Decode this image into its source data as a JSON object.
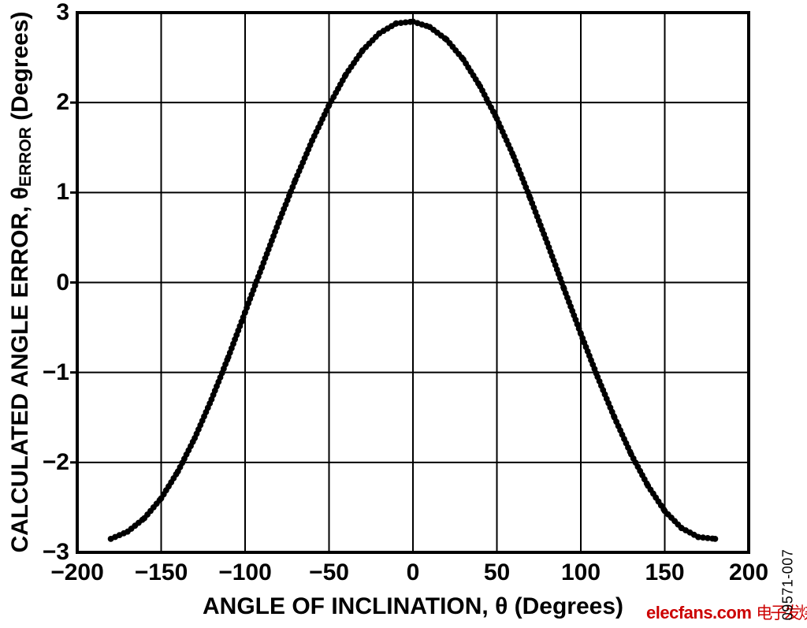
{
  "chart_data": {
    "type": "line",
    "title": "",
    "x_label": "ANGLE OF INCLINATION, θ (Degrees)",
    "y_label": "CALCULATED ANGLE ERROR, θERROR (Degrees)",
    "y_label_parts": {
      "prefix": "CALCULATED ANGLE ERROR, θ",
      "subscript": "ERROR",
      "suffix": " (Degrees)"
    },
    "xlim": [
      -200,
      200
    ],
    "ylim": [
      -3,
      3
    ],
    "grid": true,
    "x_tick_values": [
      -200,
      -150,
      -100,
      -50,
      0,
      50,
      100,
      150,
      200
    ],
    "x_tick_labels": [
      "−200",
      "−150",
      "−100",
      "−50",
      "0",
      "50",
      "100",
      "150",
      "200"
    ],
    "y_tick_values": [
      3,
      2,
      1,
      0,
      -1,
      -2,
      -3
    ],
    "y_tick_labels": [
      "3",
      "2",
      "1",
      "0",
      "−1",
      "−2",
      "−3"
    ],
    "series": [
      {
        "name": "calculated-angle-error",
        "color": "#000000",
        "x": [
          -180,
          -170,
          -160,
          -150,
          -140,
          -130,
          -120,
          -110,
          -100,
          -90,
          -80,
          -70,
          -60,
          -50,
          -40,
          -30,
          -20,
          -10,
          0,
          10,
          20,
          30,
          40,
          50,
          60,
          70,
          80,
          90,
          100,
          110,
          120,
          130,
          140,
          150,
          160,
          170,
          180
        ],
        "y": [
          -2.85,
          -2.77,
          -2.62,
          -2.4,
          -2.1,
          -1.73,
          -1.3,
          -0.83,
          -0.33,
          0.17,
          0.67,
          1.14,
          1.58,
          1.97,
          2.31,
          2.58,
          2.77,
          2.88,
          2.9,
          2.84,
          2.7,
          2.48,
          2.18,
          1.82,
          1.4,
          0.93,
          0.44,
          -0.07,
          -0.57,
          -1.05,
          -1.5,
          -1.91,
          -2.26,
          -2.54,
          -2.73,
          -2.83,
          -2.85
        ]
      }
    ]
  },
  "colors": {
    "axes": "#000000",
    "grid": "#000000",
    "curve": "#000000",
    "background": "#ffffff",
    "watermark": "#cc0000"
  },
  "watermark": {
    "brand": "elecfans.com",
    "cjk": "电子发烧友"
  },
  "figure_number": "09571-007"
}
